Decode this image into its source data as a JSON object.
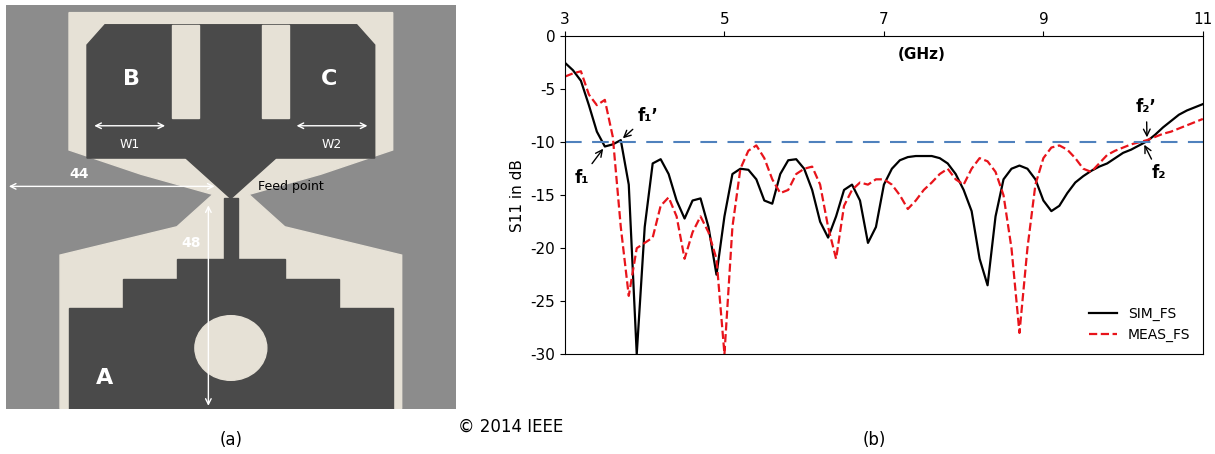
{
  "panel_a": {
    "region_labels": [
      "A",
      "B",
      "C"
    ],
    "width_labels": [
      "W1",
      "W2"
    ],
    "dimensions": [
      44,
      48
    ],
    "feed_label": "Feed point"
  },
  "chart_data": {
    "type": "line",
    "x_label": "(GHz)",
    "y_label": "S11 in dB",
    "xlim": [
      3,
      11
    ],
    "ylim": [
      -30,
      0
    ],
    "xticks": [
      3,
      5,
      7,
      9,
      11
    ],
    "yticks": [
      0,
      -5,
      -10,
      -15,
      -20,
      -25,
      -30
    ],
    "grid": false,
    "legend": "lower right",
    "reference_value": -10,
    "x": [
      3.0,
      3.1,
      3.2,
      3.3,
      3.4,
      3.5,
      3.6,
      3.7,
      3.8,
      3.9,
      4.0,
      4.1,
      4.2,
      4.3,
      4.4,
      4.5,
      4.6,
      4.7,
      4.8,
      4.9,
      5.0,
      5.1,
      5.2,
      5.3,
      5.4,
      5.5,
      5.6,
      5.7,
      5.8,
      5.9,
      6.0,
      6.1,
      6.2,
      6.3,
      6.4,
      6.5,
      6.6,
      6.7,
      6.8,
      6.9,
      7.0,
      7.1,
      7.2,
      7.3,
      7.4,
      7.5,
      7.6,
      7.7,
      7.8,
      7.9,
      8.0,
      8.1,
      8.2,
      8.3,
      8.4,
      8.5,
      8.6,
      8.7,
      8.8,
      8.9,
      9.0,
      9.1,
      9.2,
      9.3,
      9.4,
      9.5,
      9.6,
      9.7,
      9.8,
      9.9,
      10.0,
      10.1,
      10.2,
      10.3,
      10.4,
      10.5,
      10.6,
      10.7,
      10.8,
      10.9,
      11.0
    ],
    "series": [
      {
        "name": "SIM_FS",
        "color": "#000000",
        "line_style": "solid",
        "values": [
          -2.5,
          -3.2,
          -4.2,
          -6.5,
          -9.0,
          -10.4,
          -10.2,
          -9.8,
          -14,
          -30,
          -18,
          -12,
          -11.6,
          -13,
          -15.5,
          -17.2,
          -15.5,
          -15.3,
          -18,
          -22.5,
          -17,
          -13,
          -12.5,
          -12.6,
          -13.5,
          -15.5,
          -15.8,
          -13,
          -11.7,
          -11.6,
          -12.5,
          -14.5,
          -17.5,
          -19,
          -17,
          -14.5,
          -14,
          -15.5,
          -19.5,
          -18,
          -14,
          -12.5,
          -11.7,
          -11.4,
          -11.3,
          -11.3,
          -11.3,
          -11.5,
          -12,
          -13,
          -14.5,
          -16.5,
          -21,
          -23.5,
          -17,
          -13.5,
          -12.5,
          -12.2,
          -12.5,
          -13.5,
          -15.5,
          -16.5,
          -16,
          -14.8,
          -13.8,
          -13.2,
          -12.7,
          -12.3,
          -12,
          -11.5,
          -11,
          -10.7,
          -10.3,
          -9.9,
          -9.3,
          -8.6,
          -8,
          -7.4,
          -7,
          -6.7,
          -6.4
        ]
      },
      {
        "name": "MEAS_FS",
        "color": "#e8141b",
        "line_style": "dashed",
        "values": [
          -3.8,
          -3.5,
          -3.3,
          -5.5,
          -6.5,
          -6.0,
          -9.5,
          -18,
          -24.5,
          -20,
          -19.5,
          -19,
          -16,
          -15.2,
          -17,
          -21,
          -18.5,
          -17,
          -18.5,
          -21,
          -30,
          -18,
          -12.5,
          -10.8,
          -10.3,
          -11.5,
          -13.5,
          -14.8,
          -14.5,
          -13,
          -12.5,
          -12.3,
          -14,
          -18,
          -21,
          -16,
          -14.5,
          -13.8,
          -14,
          -13.5,
          -13.5,
          -14,
          -15,
          -16.3,
          -15.5,
          -14.5,
          -13.8,
          -13,
          -12.5,
          -13.5,
          -14,
          -12.5,
          -11.5,
          -11.8,
          -12.8,
          -15,
          -20,
          -28,
          -20,
          -14,
          -11.5,
          -10.5,
          -10.3,
          -10.7,
          -11.5,
          -12.5,
          -12.8,
          -12,
          -11.2,
          -10.8,
          -10.5,
          -10.2,
          -10,
          -9.8,
          -9.5,
          -9.2,
          -9,
          -8.7,
          -8.4,
          -8.1,
          -7.8
        ]
      }
    ],
    "annotations": [
      {
        "text": "f₁",
        "x": 3.5,
        "y": -10.4
      },
      {
        "text": "f₁’",
        "x": 3.7,
        "y": -9.8
      },
      {
        "text": "f₂’",
        "x": 10.3,
        "y": -9.8
      },
      {
        "text": "f₂",
        "x": 10.25,
        "y": -10
      }
    ]
  },
  "captions": {
    "a": "(a)",
    "b": "(b)",
    "copyright": "© 2014 IEEE"
  }
}
